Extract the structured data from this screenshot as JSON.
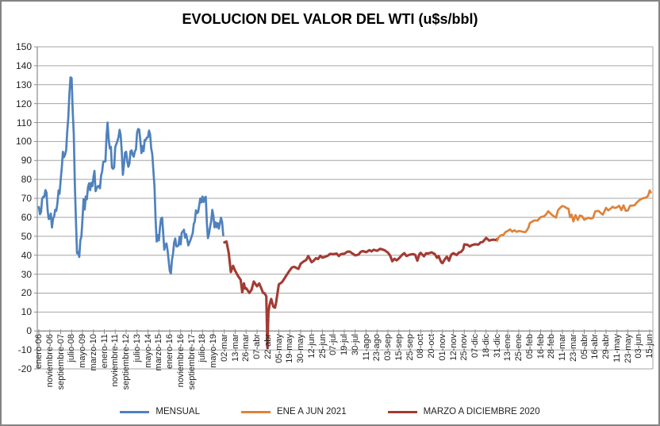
{
  "chart_data": {
    "type": "line",
    "title": "EVOLUCION DEL VALOR DEL WTI (u$s/bbl)",
    "xlabel": "",
    "ylabel": "",
    "ylim": [
      -20,
      150
    ],
    "ytick_step": 10,
    "yticks": [
      150,
      140,
      130,
      120,
      110,
      100,
      90,
      80,
      70,
      60,
      50,
      40,
      30,
      20,
      10,
      0,
      -10,
      -20
    ],
    "grid": true,
    "legend_position": "bottom",
    "categories": [
      "enero-06",
      "noviembre-06",
      "septiembre-07",
      "julio-08",
      "mayo-09",
      "marzo-10",
      "enero-11",
      "noviembre-11",
      "septiembre-12",
      "julio-13",
      "mayo-14",
      "marzo-15",
      "enero-16",
      "noviembre-16",
      "septiembre-17",
      "julio-18",
      "mayo-19",
      "02-mar",
      "13-mar",
      "26-mar",
      "07-abr",
      "22-abr",
      "05-may",
      "19-may",
      "30-may",
      "12-jun",
      "25-jun",
      "07-jul",
      "19-jul",
      "30-jul",
      "11-ago",
      "23-ago",
      "03-sep",
      "15-sep",
      "25-sep",
      "08-oct",
      "20-oct",
      "01-nov",
      "12-nov",
      "25-nov",
      "07-dic",
      "18-dic",
      "31-dic",
      "13-ene",
      "25-ene",
      "05-feb",
      "16-feb",
      "28-feb",
      "11-mar",
      "23-mar",
      "05-abr",
      "16-abr",
      "29-abr",
      "11-may",
      "23-may",
      "03-jun",
      "15-jun"
    ],
    "axis_note": "x positions are category-label index units 0-56; MENSUAL is monthly data plotted at x_start + i*x_step",
    "series": [
      {
        "name": "MENSUAL",
        "color": "#4F81BD",
        "x_start": 0,
        "x_step": 0.1,
        "values": [
          65.5,
          61.6,
          62.9,
          69.7,
          70.9,
          70.9,
          74.4,
          73.1,
          63.9,
          59.1,
          59.4,
          62.0,
          54.6,
          59.3,
          60.6,
          64.0,
          63.5,
          67.5,
          74.2,
          72.4,
          79.9,
          86.2,
          94.6,
          91.7,
          93.0,
          95.4,
          105.6,
          112.6,
          125.4,
          133.9,
          133.4,
          116.7,
          103.9,
          76.7,
          57.4,
          41.0,
          41.7,
          39.1,
          48.0,
          49.8,
          59.2,
          69.7,
          64.1,
          71.0,
          69.5,
          75.8,
          78.0,
          74.3,
          78.2,
          76.4,
          81.2,
          84.5,
          73.8,
          75.4,
          76.4,
          76.6,
          75.3,
          81.9,
          84.3,
          89.2,
          89.4,
          89.5,
          102.9,
          110.0,
          101.3,
          96.3,
          97.2,
          86.3,
          85.6,
          86.4,
          97.2,
          98.6,
          100.3,
          102.3,
          106.2,
          103.3,
          94.7,
          82.4,
          87.9,
          94.1,
          94.6,
          89.6,
          86.7,
          88.2,
          94.8,
          95.3,
          92.9,
          92.0,
          94.8,
          95.8,
          104.7,
          106.6,
          106.3,
          100.5,
          93.9,
          97.6,
          94.9,
          100.8,
          100.8,
          102.1,
          102.2,
          105.8,
          103.6,
          96.5,
          93.2,
          84.4,
          75.8,
          59.3,
          47.2,
          50.6,
          47.8,
          54.5,
          59.3,
          59.8,
          51.2,
          42.9,
          45.5,
          46.2,
          42.4,
          37.2,
          31.7,
          30.3,
          37.6,
          40.8,
          46.7,
          48.8,
          44.7,
          44.7,
          45.2,
          49.8,
          45.7,
          52.0,
          52.5,
          53.5,
          49.3,
          51.1,
          48.5,
          45.2,
          46.6,
          48.0,
          49.8,
          51.6,
          56.6,
          57.9,
          63.7,
          62.2,
          62.7,
          66.3,
          70.0,
          67.9,
          71.0,
          68.1,
          70.2,
          70.8,
          57.0,
          49.0,
          51.4,
          55.0,
          58.2,
          63.9,
          60.8,
          54.7,
          57.4,
          54.8,
          56.9,
          54.0,
          57.0,
          59.8,
          57.5,
          50.5
        ]
      },
      {
        "name": "ENE A JUN  2021",
        "color": "#DF8239",
        "points": [
          [
            42,
            47.6
          ],
          [
            42.2,
            49.9
          ],
          [
            42.4,
            50.6
          ],
          [
            42.6,
            50.8
          ],
          [
            42.8,
            52.3
          ],
          [
            43,
            52.9
          ],
          [
            43.2,
            53.6
          ],
          [
            43.4,
            52.4
          ],
          [
            43.6,
            53.2
          ],
          [
            43.8,
            52.3
          ],
          [
            44,
            52.8
          ],
          [
            44.2,
            52.6
          ],
          [
            44.4,
            52.3
          ],
          [
            44.6,
            52.2
          ],
          [
            44.8,
            53.6
          ],
          [
            44.9,
            54.8
          ],
          [
            45,
            56.9
          ],
          [
            45.3,
            58
          ],
          [
            45.5,
            58.4
          ],
          [
            45.7,
            58.2
          ],
          [
            46,
            60.1
          ],
          [
            46.3,
            60.5
          ],
          [
            46.5,
            61.5
          ],
          [
            46.7,
            63.2
          ],
          [
            47,
            61.5
          ],
          [
            47.2,
            60.6
          ],
          [
            47.4,
            59.8
          ],
          [
            47.6,
            63.8
          ],
          [
            47.8,
            65.1
          ],
          [
            48,
            66
          ],
          [
            48.2,
            65.6
          ],
          [
            48.4,
            64.8
          ],
          [
            48.55,
            64.6
          ],
          [
            48.7,
            60
          ],
          [
            48.85,
            61.4
          ],
          [
            49,
            57.8
          ],
          [
            49.2,
            61.2
          ],
          [
            49.4,
            58.6
          ],
          [
            49.6,
            61
          ],
          [
            49.8,
            60.6
          ],
          [
            50,
            58.7
          ],
          [
            50.2,
            59.3
          ],
          [
            50.4,
            59.8
          ],
          [
            50.6,
            59.3
          ],
          [
            50.8,
            59.7
          ],
          [
            51,
            63.1
          ],
          [
            51.3,
            63.4
          ],
          [
            51.5,
            62.4
          ],
          [
            51.7,
            61.4
          ],
          [
            52,
            65
          ],
          [
            52.2,
            63.6
          ],
          [
            52.4,
            64.5
          ],
          [
            52.6,
            65.6
          ],
          [
            52.8,
            64.9
          ],
          [
            53,
            65.3
          ],
          [
            53.2,
            66.1
          ],
          [
            53.4,
            63.8
          ],
          [
            53.6,
            66.3
          ],
          [
            53.8,
            63.4
          ],
          [
            54,
            63.6
          ],
          [
            54.2,
            66.1
          ],
          [
            54.4,
            66.2
          ],
          [
            54.6,
            66.3
          ],
          [
            54.8,
            67.7
          ],
          [
            55,
            68.8
          ],
          [
            55.2,
            69.6
          ],
          [
            55.4,
            70.1
          ],
          [
            55.6,
            70.3
          ],
          [
            55.8,
            71
          ],
          [
            55.9,
            72.1
          ],
          [
            56,
            74.2
          ],
          [
            56.1,
            73.2
          ]
        ]
      },
      {
        "name": "MARZO A DICIEMBRE  2020",
        "color": "#A33B33",
        "points": [
          [
            17,
            46.8
          ],
          [
            17.2,
            47.2
          ],
          [
            17.4,
            41.3
          ],
          [
            17.6,
            31.1
          ],
          [
            17.8,
            34.4
          ],
          [
            18,
            31.7
          ],
          [
            18.3,
            28.7
          ],
          [
            18.5,
            27
          ],
          [
            18.65,
            20.4
          ],
          [
            18.8,
            25.2
          ],
          [
            18.9,
            22.4
          ],
          [
            19,
            22.6
          ],
          [
            19.3,
            20.1
          ],
          [
            19.5,
            21.8
          ],
          [
            19.7,
            26.1
          ],
          [
            20,
            23.6
          ],
          [
            20.2,
            25.1
          ],
          [
            20.4,
            22.4
          ],
          [
            20.55,
            20.1
          ],
          [
            20.7,
            19.9
          ],
          [
            20.85,
            18.3
          ],
          [
            20.95,
            -9
          ],
          [
            21.05,
            10
          ],
          [
            21.15,
            13.8
          ],
          [
            21.3,
            16.9
          ],
          [
            21.5,
            12.8
          ],
          [
            21.65,
            12.3
          ],
          [
            21.75,
            15.1
          ],
          [
            21.85,
            18.8
          ],
          [
            22,
            24.6
          ],
          [
            22.3,
            25.8
          ],
          [
            22.5,
            27.6
          ],
          [
            22.7,
            29.4
          ],
          [
            23,
            32
          ],
          [
            23.2,
            33.5
          ],
          [
            23.4,
            33.9
          ],
          [
            23.6,
            33.3
          ],
          [
            23.8,
            32.8
          ],
          [
            24,
            35.5
          ],
          [
            24.3,
            36.8
          ],
          [
            24.5,
            37.4
          ],
          [
            24.7,
            39.6
          ],
          [
            25,
            36.3
          ],
          [
            25.2,
            37.1
          ],
          [
            25.4,
            38.4
          ],
          [
            25.6,
            38
          ],
          [
            25.8,
            39.7
          ],
          [
            26,
            38.7
          ],
          [
            26.3,
            39.3
          ],
          [
            26.5,
            39.8
          ],
          [
            26.7,
            40.7
          ],
          [
            27,
            40.6
          ],
          [
            27.3,
            40.9
          ],
          [
            27.5,
            39.6
          ],
          [
            27.7,
            40.6
          ],
          [
            28,
            40.8
          ],
          [
            28.3,
            41.9
          ],
          [
            28.5,
            41.9
          ],
          [
            28.7,
            41.1
          ],
          [
            29,
            39.9
          ],
          [
            29.3,
            40.3
          ],
          [
            29.5,
            41.7
          ],
          [
            29.7,
            42.2
          ],
          [
            30,
            41.6
          ],
          [
            30.3,
            42.7
          ],
          [
            30.5,
            42
          ],
          [
            30.7,
            42.9
          ],
          [
            31,
            42.3
          ],
          [
            31.3,
            43.4
          ],
          [
            31.5,
            43
          ],
          [
            31.7,
            42.6
          ],
          [
            32,
            41.4
          ],
          [
            32.2,
            39.8
          ],
          [
            32.4,
            36.8
          ],
          [
            32.6,
            38.1
          ],
          [
            32.8,
            37.3
          ],
          [
            33,
            38.3
          ],
          [
            33.3,
            40.2
          ],
          [
            33.5,
            41.1
          ],
          [
            33.7,
            39.6
          ],
          [
            34,
            40.3
          ],
          [
            34.3,
            40.6
          ],
          [
            34.5,
            40.2
          ],
          [
            34.7,
            37.1
          ],
          [
            34.9,
            40.7
          ],
          [
            35,
            41.2
          ],
          [
            35.3,
            39.4
          ],
          [
            35.5,
            41
          ],
          [
            35.7,
            40.9
          ],
          [
            36,
            41.5
          ],
          [
            36.3,
            40.6
          ],
          [
            36.5,
            38.6
          ],
          [
            36.65,
            39.6
          ],
          [
            36.8,
            37.4
          ],
          [
            36.9,
            36.2
          ],
          [
            37,
            35.8
          ],
          [
            37.2,
            37.7
          ],
          [
            37.4,
            39.2
          ],
          [
            37.6,
            37.1
          ],
          [
            37.8,
            40.3
          ],
          [
            38,
            41.1
          ],
          [
            38.3,
            40.1
          ],
          [
            38.5,
            41.4
          ],
          [
            38.7,
            41.7
          ],
          [
            38.9,
            43.1
          ],
          [
            39,
            45.7
          ],
          [
            39.3,
            45.5
          ],
          [
            39.5,
            44.6
          ],
          [
            39.7,
            45.3
          ],
          [
            40,
            45.8
          ],
          [
            40.3,
            45.6
          ],
          [
            40.5,
            46.8
          ],
          [
            40.7,
            47
          ],
          [
            41,
            49.1
          ],
          [
            41.3,
            47.7
          ],
          [
            41.5,
            48.1
          ],
          [
            41.7,
            48.2
          ],
          [
            41.9,
            48
          ],
          [
            42,
            48.5
          ]
        ]
      }
    ],
    "style": {
      "gridline_color": "#A6A6A6",
      "axis_color": "#8C8C8C",
      "plot_border_color": "#A6A6A6"
    }
  }
}
